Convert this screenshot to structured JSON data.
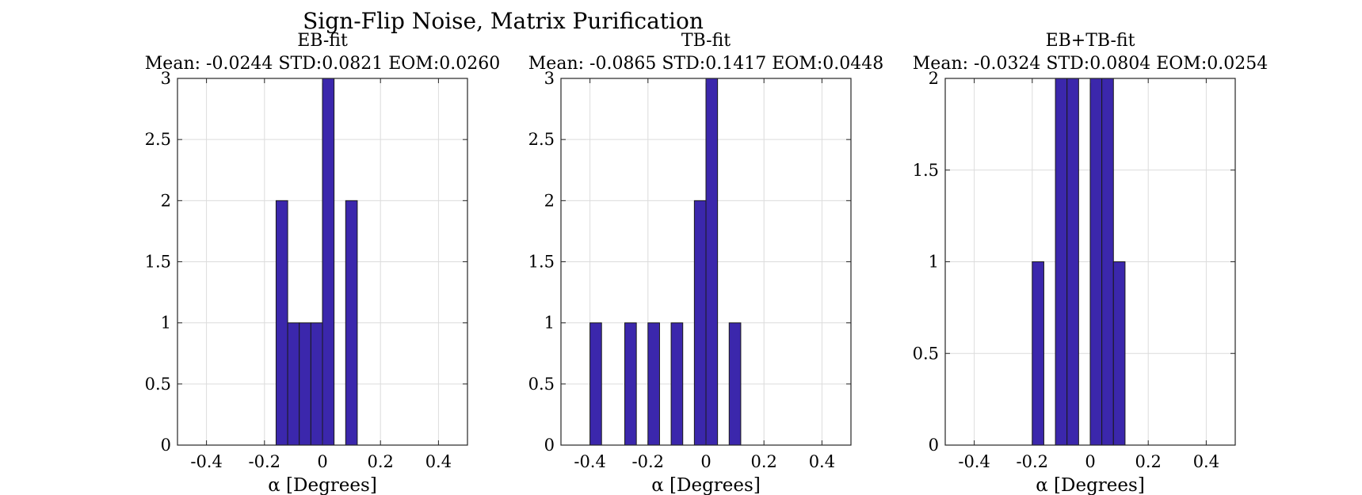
{
  "figure": {
    "title": "Sign-Flip Noise, Matrix Purification"
  },
  "colors": {
    "bar_fill": "#3b27ac",
    "bar_edge": "#1a1a1a",
    "grid": "#dcdcdc",
    "axis": "#262626"
  },
  "chart_data": [
    {
      "type": "bar",
      "title": "EB-fit",
      "subtitle": "Mean: -0.0244 STD:0.0821 EOM:0.0260",
      "xlabel": "α [Degrees]",
      "ylabel": "",
      "xlim": [
        -0.5,
        0.5
      ],
      "ylim": [
        0,
        3
      ],
      "xticks": [
        -0.4,
        -0.2,
        0,
        0.2,
        0.4
      ],
      "xtick_labels": [
        "-0.4",
        "-0.2",
        "0",
        "0.2",
        "0.4"
      ],
      "yticks": [
        0,
        0.5,
        1,
        1.5,
        2,
        2.5,
        3
      ],
      "ytick_labels": [
        "0",
        "0.5",
        "1",
        "1.5",
        "2",
        "2.5",
        "3"
      ],
      "grid": true,
      "bin_width": 0.04,
      "bin_left_edges": [
        -0.16,
        -0.12,
        -0.08,
        -0.04,
        0.0,
        0.04,
        0.08
      ],
      "values": [
        2,
        1,
        1,
        1,
        3,
        0,
        2
      ]
    },
    {
      "type": "bar",
      "title": "TB-fit",
      "subtitle": "Mean: -0.0865 STD:0.1417 EOM:0.0448",
      "xlabel": "α [Degrees]",
      "ylabel": "",
      "xlim": [
        -0.5,
        0.5
      ],
      "ylim": [
        0,
        3
      ],
      "xticks": [
        -0.4,
        -0.2,
        0,
        0.2,
        0.4
      ],
      "xtick_labels": [
        "-0.4",
        "-0.2",
        "0",
        "0.2",
        "0.4"
      ],
      "yticks": [
        0,
        0.5,
        1,
        1.5,
        2,
        2.5,
        3
      ],
      "ytick_labels": [
        "0",
        "0.5",
        "1",
        "1.5",
        "2",
        "2.5",
        "3"
      ],
      "grid": true,
      "bin_width": 0.04,
      "bin_left_edges": [
        -0.4,
        -0.36,
        -0.32,
        -0.28,
        -0.24,
        -0.2,
        -0.16,
        -0.12,
        -0.08,
        -0.04,
        0.0,
        0.04,
        0.08
      ],
      "values": [
        1,
        0,
        0,
        1,
        0,
        1,
        0,
        1,
        0,
        2,
        3,
        0,
        1
      ]
    },
    {
      "type": "bar",
      "title": "EB+TB-fit",
      "subtitle": "Mean: -0.0324 STD:0.0804 EOM:0.0254",
      "xlabel": "α [Degrees]",
      "ylabel": "",
      "xlim": [
        -0.5,
        0.5
      ],
      "ylim": [
        0,
        2
      ],
      "xticks": [
        -0.4,
        -0.2,
        0,
        0.2,
        0.4
      ],
      "xtick_labels": [
        "-0.4",
        "-0.2",
        "0",
        "0.2",
        "0.4"
      ],
      "yticks": [
        0,
        0.5,
        1,
        1.5,
        2
      ],
      "ytick_labels": [
        "0",
        "0.5",
        "1",
        "1.5",
        "2"
      ],
      "grid": true,
      "bin_width": 0.04,
      "bin_left_edges": [
        -0.2,
        -0.16,
        -0.12,
        -0.08,
        -0.04,
        0.0,
        0.04,
        0.08
      ],
      "values": [
        1,
        0,
        2,
        2,
        0,
        2,
        2,
        1
      ]
    }
  ]
}
